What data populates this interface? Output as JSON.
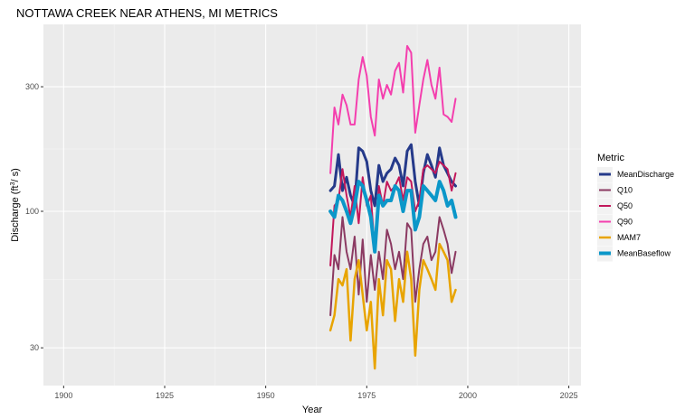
{
  "chart_data": {
    "type": "line",
    "title": "NOTTAWA CREEK NEAR ATHENS, MI  METRICS",
    "xlabel": "Year",
    "ylabel": "Discharge (ft",
    "ylabel_sup": "3",
    "ylabel_end": "/ s)",
    "y_scale": "log",
    "xlim": [
      1895,
      2028
    ],
    "ylim": [
      21.5,
      520
    ],
    "x_ticks": [
      1900,
      1925,
      1950,
      1975,
      2000,
      2025
    ],
    "x_tick_labels": [
      "1900",
      "1925",
      "1950",
      "1975",
      "2000",
      "2025"
    ],
    "y_ticks": [
      30,
      100,
      300
    ],
    "y_tick_labels": [
      "30",
      "100",
      "300"
    ],
    "grid": true,
    "legend_title": "Metric",
    "legend_position": "right",
    "x": [
      1966,
      1967,
      1968,
      1969,
      1970,
      1971,
      1972,
      1973,
      1974,
      1975,
      1976,
      1977,
      1978,
      1979,
      1980,
      1981,
      1982,
      1983,
      1984,
      1985,
      1986,
      1987,
      1988,
      1989,
      1990,
      1991,
      1992,
      1993,
      1994,
      1995,
      1996,
      1997
    ],
    "series": [
      {
        "name": "MeanDischarge",
        "color": "#253a8a",
        "width": 3,
        "values": [
          120,
          125,
          165,
          120,
          135,
          115,
          105,
          175,
          170,
          155,
          120,
          105,
          150,
          130,
          140,
          145,
          160,
          150,
          125,
          170,
          180,
          130,
          105,
          140,
          165,
          150,
          135,
          175,
          150,
          140,
          130,
          125
        ]
      },
      {
        "name": "Q10",
        "color": "#8b3a62",
        "width": 2,
        "values": [
          40,
          68,
          60,
          95,
          70,
          60,
          80,
          48,
          78,
          45,
          68,
          50,
          70,
          55,
          85,
          75,
          60,
          70,
          55,
          90,
          85,
          45,
          60,
          75,
          80,
          65,
          70,
          95,
          85,
          75,
          58,
          70
        ]
      },
      {
        "name": "Q50",
        "color": "#c2185b",
        "width": 2,
        "values": [
          62,
          105,
          110,
          145,
          115,
          95,
          125,
          90,
          135,
          105,
          115,
          70,
          125,
          105,
          130,
          120,
          125,
          135,
          110,
          135,
          130,
          100,
          110,
          145,
          150,
          145,
          140,
          155,
          150,
          145,
          120,
          140
        ]
      },
      {
        "name": "Q90",
        "color": "#f43fae",
        "width": 2,
        "values": [
          140,
          250,
          215,
          280,
          255,
          215,
          215,
          320,
          390,
          330,
          230,
          195,
          320,
          270,
          305,
          280,
          345,
          370,
          285,
          430,
          405,
          200,
          255,
          320,
          380,
          305,
          270,
          355,
          235,
          230,
          220,
          270
        ]
      },
      {
        "name": "MAM7",
        "color": "#e8a400",
        "width": 2.5,
        "values": [
          35,
          40,
          55,
          52,
          60,
          32,
          55,
          65,
          48,
          35,
          45,
          25,
          55,
          40,
          65,
          60,
          38,
          55,
          45,
          70,
          55,
          28,
          50,
          65,
          60,
          55,
          50,
          75,
          70,
          65,
          45,
          50
        ]
      },
      {
        "name": "MeanBaseflow",
        "color": "#0b97c9",
        "width": 4,
        "values": [
          100,
          95,
          115,
          110,
          100,
          90,
          105,
          130,
          125,
          110,
          95,
          70,
          115,
          105,
          110,
          110,
          125,
          120,
          100,
          120,
          120,
          85,
          95,
          125,
          120,
          115,
          110,
          130,
          120,
          105,
          110,
          95
        ]
      }
    ]
  }
}
